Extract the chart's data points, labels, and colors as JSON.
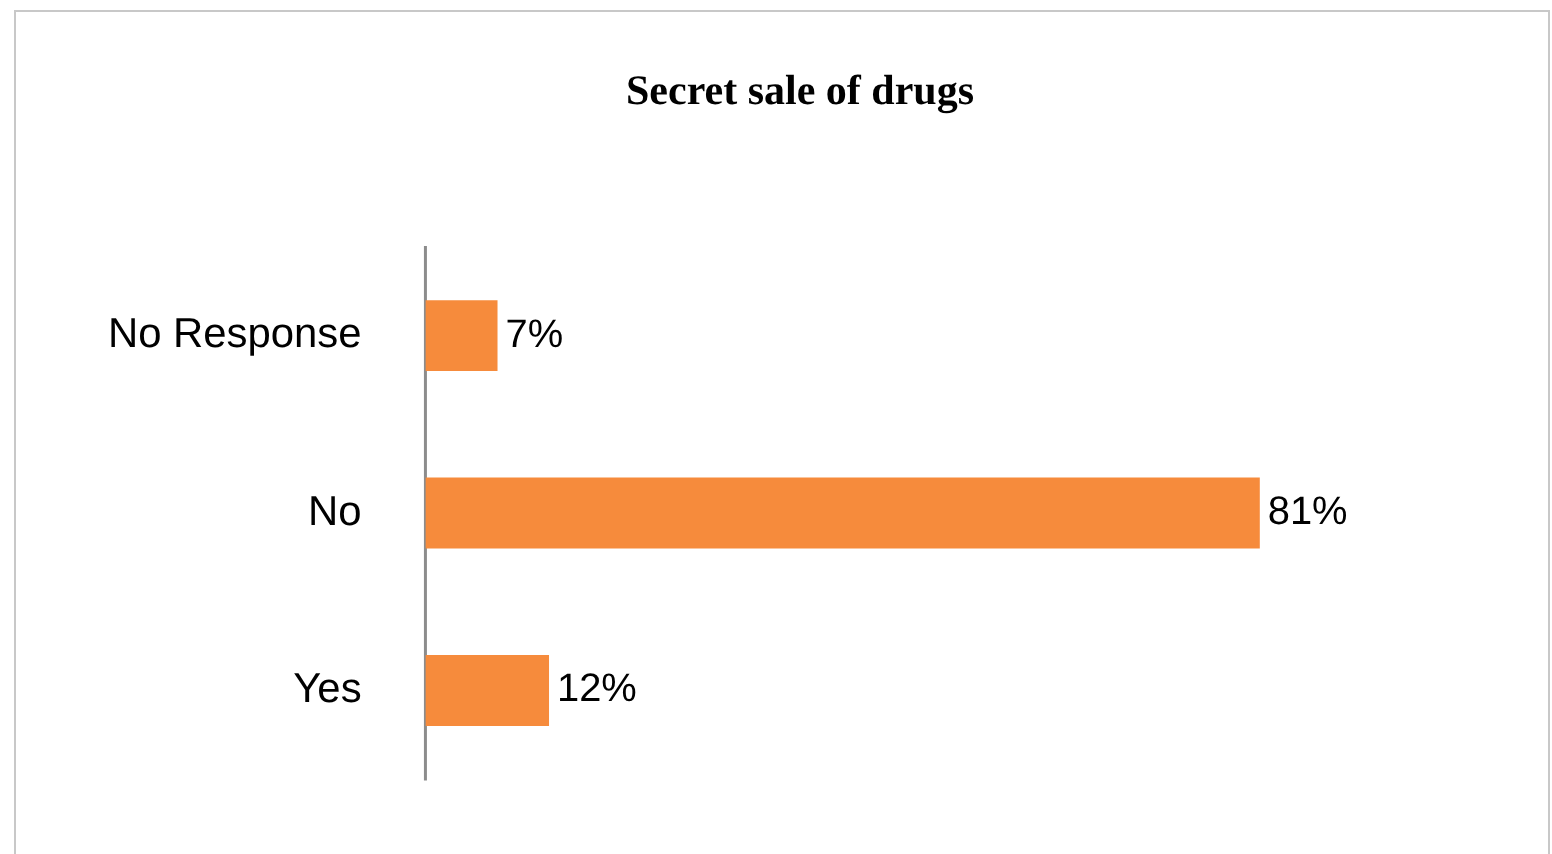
{
  "chart_data": {
    "type": "bar",
    "orientation": "horizontal",
    "title": "Secret sale of drugs",
    "categories": [
      "No Response",
      "No",
      "Yes"
    ],
    "values": [
      7,
      81,
      12
    ],
    "value_labels": [
      "7%",
      "81%",
      "12%"
    ],
    "color": "#f68b3c"
  }
}
